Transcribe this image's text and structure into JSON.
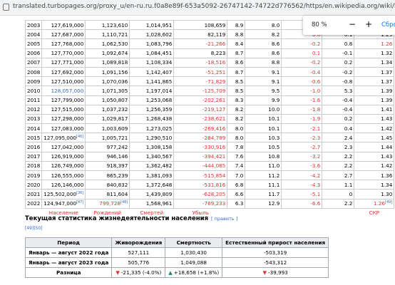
{
  "browser": {
    "url": "translated.turbopages.org/proxy_u/en-ru.ru.f0a8e89f-653a5092-26747142-74722d776562/https/en.wikipedia.org/wiki/Demographics_of_Japan",
    "zoom": "80 %",
    "zoom_out": "−",
    "zoom_in": "+",
    "reset": "Сбро"
  },
  "table": {
    "rows": [
      [
        "2003",
        "127,619,000",
        "1,123,610",
        "1,014,951",
        "108,659",
        "8.9",
        "8.0",
        null,
        null,
        null
      ],
      [
        "2004",
        "127,687,000",
        "1,110,721",
        "1,028,602",
        "82,119",
        "8.8",
        "8.2",
        "0.6",
        "-0.1",
        "1.29"
      ],
      [
        "2005",
        "127,768,000",
        "1,062,530",
        "1,083,796",
        "-21,266",
        "8.4",
        "8.6",
        "-0.2",
        "0.8",
        {
          "text": "1.26",
          "color": "#d33"
        }
      ],
      [
        "2006",
        "127,770,000",
        "1,092,674",
        "1,084,451",
        "8,223",
        "8.7",
        "8.6",
        "0.1",
        "-0.1",
        "1.32"
      ],
      [
        "2007",
        "127,771,000",
        "1,089,818",
        "1,108,334",
        "-18,516",
        "8.6",
        "8.8",
        "-0.2",
        "0.2",
        "1.34"
      ],
      [
        "2008",
        "127,692,000",
        "1,091,156",
        "1,142,407",
        "-51,251",
        "8.7",
        "9.1",
        "-0.4",
        "-0.2",
        "1.37"
      ],
      [
        "2009",
        "127,510,000",
        "1,070,036",
        "1,141,865",
        "-71,829",
        "8.5",
        "9.1",
        "-0.6",
        "-0.8",
        "1.37"
      ],
      [
        "2010",
        {
          "text": "128,057,000",
          "color": "#3366cc"
        },
        "1,071,305",
        "1,197,014",
        "-125,709",
        "8.5",
        "9.5",
        "-1.0",
        "5.3",
        "1.39"
      ],
      [
        "2011",
        "127,799,000",
        "1,050,807",
        "1,253,068",
        "-202,261",
        "8.3",
        "9.9",
        "-1.6",
        "-0.4",
        "1.39"
      ],
      [
        "2012",
        "127,515,000",
        "1,037,232",
        "1,256,359",
        "-219,127",
        "8.2",
        "10.0",
        "-1.8",
        "-0.4",
        "1.41"
      ],
      [
        "2013",
        "127,298,000",
        "1,029,817",
        "1,268,438",
        "-238,621",
        "8.2",
        "10.1",
        "-1.9",
        "0.2",
        "1.43"
      ],
      [
        "2014",
        "127,083,000",
        "1,003,609",
        "1,273,025",
        "-269,416",
        "8.0",
        "10.1",
        "-2.1",
        "0.4",
        "1.42"
      ],
      [
        "2015",
        {
          "text": "127,095,000",
          "ref": "[46]"
        },
        "1,005,721",
        "1,290,510",
        "-284,789",
        "8.0",
        "10.3",
        "-2.3",
        "2.4",
        "1.45"
      ],
      [
        "2016",
        "127,042,000",
        "977,242",
        "1,308,158",
        "-330,916",
        "7.8",
        "10.5",
        "-2.7",
        "2.3",
        "1.44"
      ],
      [
        "2017",
        "126,919,000",
        "946,146",
        "1,340,567",
        "-394,421",
        "7.6",
        "10.8",
        "-3.2",
        "2.2",
        "1.43"
      ],
      [
        "2018",
        "126,749,000",
        "918,397",
        "1,362,482",
        "-444,085",
        "7.4",
        "11.0",
        "-3.6",
        "2.2",
        "1.42"
      ],
      [
        "2019",
        "126,555,000",
        "865,239",
        "1,381,093",
        "-515,854",
        "7.0",
        "11.2",
        "-4.2",
        "2.7",
        "1.36"
      ],
      [
        "2020",
        "126,146,000",
        "840,832",
        "1,372,648",
        "-531,816",
        "6.8",
        "11.1",
        "-4.3",
        "1.1",
        "1.34"
      ],
      [
        "2021",
        {
          "text": "125,502,000",
          "ref": "[36]"
        },
        "811,604",
        "1,439,809",
        "-628,205",
        "6.6",
        "11.7",
        "-5.1",
        "0",
        "1.30"
      ],
      [
        "2022",
        {
          "text": "124,947,000",
          "ref": "[47]"
        },
        {
          "text": "799,728",
          "ref": "[48]",
          "color": "#d33"
        },
        "1,568,961",
        "-769,233",
        "6.3",
        "12.9",
        "-6.6",
        "2.2",
        {
          "text": "1.26",
          "ref": "[49]",
          "color": "#d33"
        }
      ]
    ],
    "footer": [
      null,
      "Население",
      "Рождений",
      "Смертей",
      "Убыль",
      null,
      null,
      null,
      null,
      "СКР"
    ]
  },
  "section": {
    "title": "Текущая статистика жизнедеятельности населения",
    "edit": "[ править ]",
    "refs": "[49][50]"
  },
  "stats_table": {
    "header": [
      "Период",
      "Живорождения",
      "Смертность",
      "Естественный прирост населения"
    ],
    "rows": [
      [
        "Январь — август 2022 года",
        "527,111",
        "1,030,430",
        "-503,319"
      ],
      [
        "Январь — август 2023 года",
        "505,776",
        "1,049,088",
        "-543,312"
      ],
      [
        "Разница",
        {
          "arrow": "▼",
          "text": "-21,335 (-4.0%)"
        },
        {
          "arrow": "▲",
          "text": "+18,658 (+1.8%)"
        },
        {
          "arrow": "▼",
          "text": "-39,993"
        }
      ]
    ]
  }
}
